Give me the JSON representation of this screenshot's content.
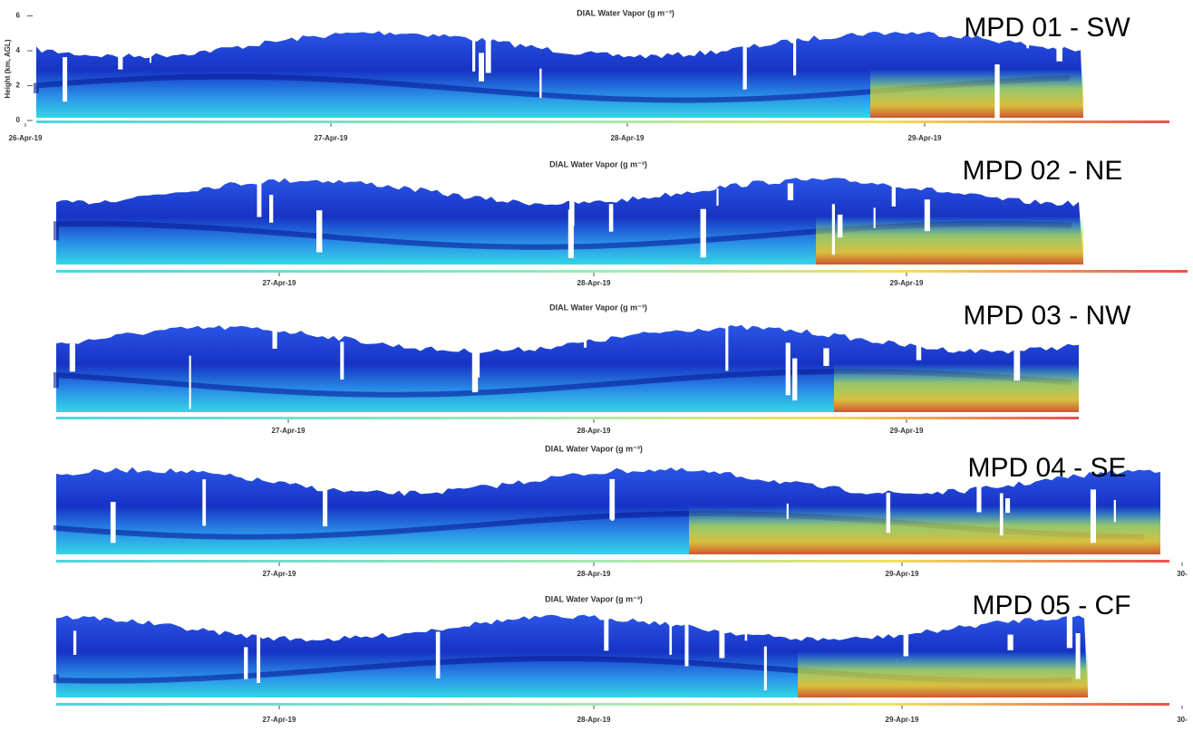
{
  "panels": [
    {
      "title": "DIAL Water Vapor (g m⁻³)",
      "label": "MPD 01 - SW",
      "ylabel": "Height (km, AGL)",
      "ylim": [
        0,
        6.5
      ],
      "yticks": [
        0,
        2,
        4,
        6
      ],
      "xticks": [
        "26-Apr-19",
        "27-Apr-19",
        "28-Apr-19",
        "29-Apr-19"
      ]
    },
    {
      "title": "DIAL Water Vapor (g m⁻³)",
      "label": "MPD 02 - NE",
      "xticks": [
        "27-Apr-19",
        "28-Apr-19",
        "29-Apr-19"
      ]
    },
    {
      "title": "DIAL Water Vapor (g m⁻³)",
      "label": "MPD 03 - NW",
      "xticks": [
        "27-Apr-19",
        "28-Apr-19",
        "29-Apr-19"
      ]
    },
    {
      "title": "DIAL Water Vapor (g m⁻³)",
      "label": "MPD 04 - SE",
      "xticks": [
        "27-Apr-19",
        "28-Apr-19",
        "29-Apr-19",
        "30-"
      ]
    },
    {
      "title": "DIAL Water Vapor (g m⁻³)",
      "label": "MPD 05 - CF",
      "xticks": [
        "27-Apr-19",
        "28-Apr-19",
        "29-Apr-19",
        "30-"
      ]
    }
  ]
}
